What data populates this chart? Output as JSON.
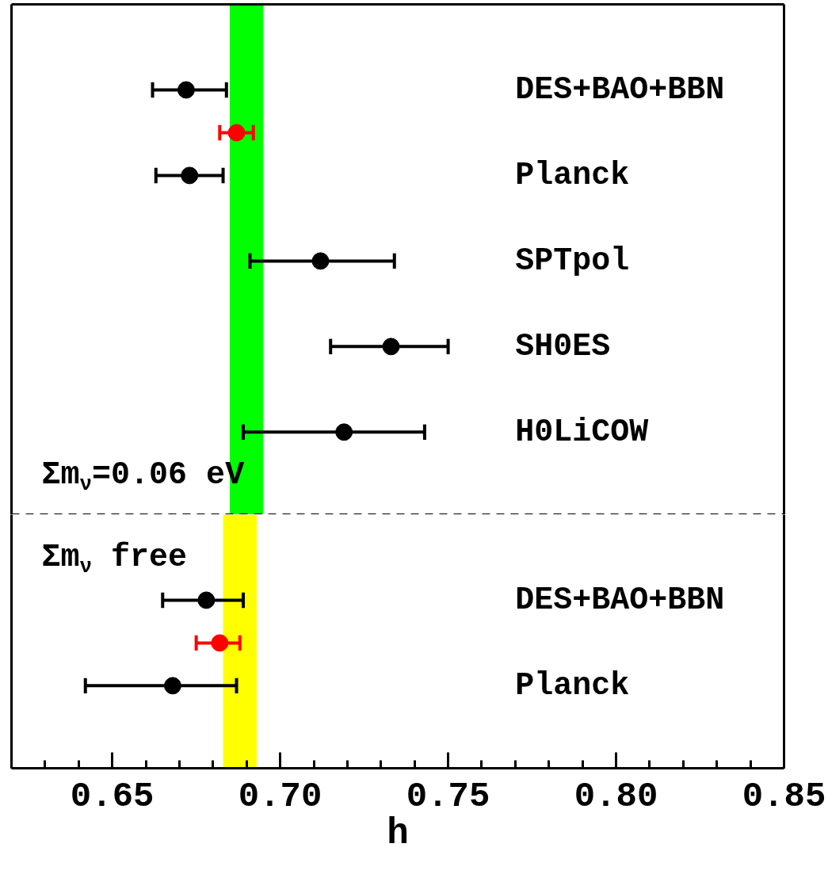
{
  "chart_data": [
    {
      "type": "scatter",
      "orientation": "horizontal",
      "categories": [
        null,
        "DES+BAO+BBN",
        null,
        "Planck",
        null,
        "SPTpol",
        null,
        "SH0ES",
        null,
        "H0LiCOW",
        null
      ],
      "series": [
        {
          "color": "#000000",
          "values": [
            null,
            0.672,
            null,
            0.673,
            null,
            0.712,
            null,
            0.733,
            null,
            0.719,
            null
          ],
          "errors": [
            null,
            [
              0.662,
              0.684
            ],
            null,
            [
              0.663,
              0.683
            ],
            null,
            [
              0.691,
              0.734
            ],
            null,
            [
              0.715,
              0.75
            ],
            null,
            [
              0.689,
              0.743
            ],
            null
          ]
        },
        {
          "color": "#ff0000",
          "values": [
            null,
            null,
            0.687,
            null,
            null,
            null,
            null,
            null,
            null,
            null,
            null
          ],
          "errors": [
            null,
            null,
            [
              0.682,
              0.692
            ],
            null,
            null,
            null,
            null,
            null,
            null,
            null,
            null
          ]
        }
      ],
      "xlim": [
        0.62,
        0.85
      ],
      "bands": [
        {
          "axis": "x",
          "from": 0.685,
          "to": 0.695,
          "color": "#00ff00"
        }
      ],
      "annotations": [
        "Σm$_{ν}$=0.06 eV"
      ],
      "marker": "circle",
      "tick_labels": false
    },
    {
      "type": "scatter",
      "orientation": "horizontal",
      "categories": [
        null,
        "DES+BAO+BBN",
        null,
        "Planck",
        null
      ],
      "series": [
        {
          "color": "#000000",
          "values": [
            null,
            0.678,
            null,
            0.668,
            null
          ],
          "errors": [
            null,
            [
              0.665,
              0.689
            ],
            null,
            [
              0.642,
              0.687
            ],
            null
          ]
        },
        {
          "color": "#ff0000",
          "values": [
            null,
            null,
            0.682,
            null,
            null
          ],
          "errors": [
            null,
            null,
            [
              0.675,
              0.688
            ],
            null,
            null
          ]
        }
      ],
      "xlim": [
        0.62,
        0.85
      ],
      "xticks": [
        {
          "value": 0.65,
          "label": "0.65"
        },
        {
          "value": 0.7,
          "label": "0.70"
        },
        {
          "value": 0.75,
          "label": "0.75"
        },
        {
          "value": 0.8,
          "label": "0.80"
        },
        {
          "value": 0.85,
          "label": "0.85"
        }
      ],
      "xlabel": "h",
      "bands": [
        {
          "axis": "x",
          "from": 0.683,
          "to": 0.693,
          "color": "#ffff00"
        }
      ],
      "annotations": [
        "Σm$_{ν}$ free"
      ],
      "marker": "circle",
      "tick_labels": "x"
    }
  ]
}
